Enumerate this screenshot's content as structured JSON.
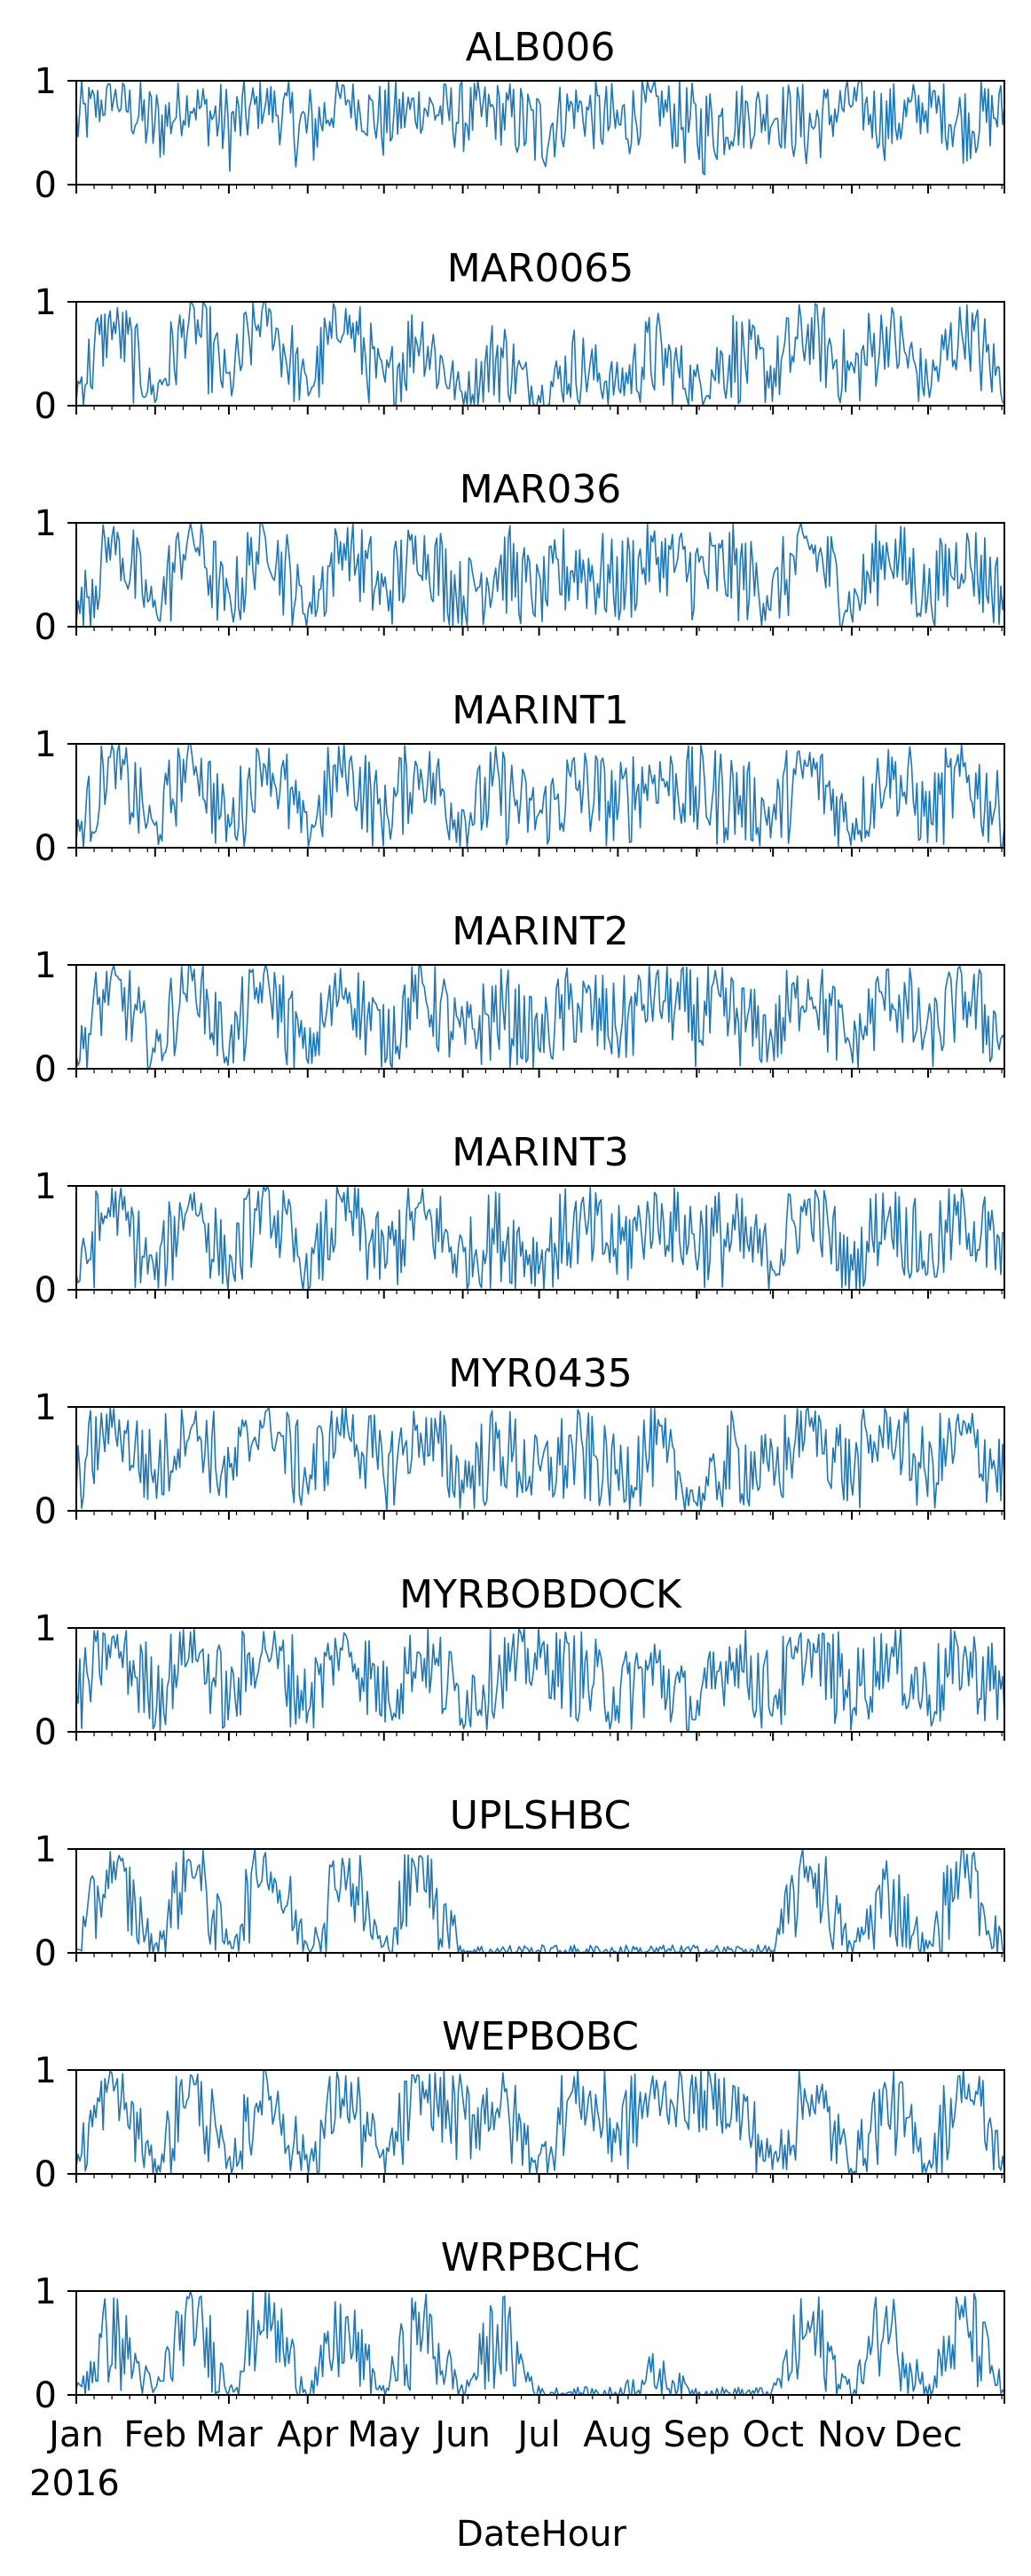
{
  "figure": {
    "xlabel": "DateHour",
    "year_label": "2016",
    "month_ticks": [
      "Jan",
      "Feb",
      "Mar",
      "Apr",
      "May",
      "Jun",
      "Jul",
      "Aug",
      "Sep",
      "Oct",
      "Nov",
      "Dec"
    ]
  },
  "colors": {
    "line": "#1f77b4",
    "axis": "#000000"
  },
  "chart_data": [
    {
      "type": "line",
      "title": "ALB006",
      "xlabel": "DateHour",
      "ylim": [
        0,
        1
      ],
      "yticks": [
        0,
        1
      ],
      "x_range": [
        "2016-01-01",
        "2016-12-31"
      ],
      "x": [
        "2016-01-01",
        "2016-01-15",
        "2016-02-01",
        "2016-02-15",
        "2016-03-01",
        "2016-03-15",
        "2016-04-01",
        "2016-04-15",
        "2016-05-01",
        "2016-05-15",
        "2016-06-01",
        "2016-06-15",
        "2016-07-01",
        "2016-07-15",
        "2016-08-01",
        "2016-08-15",
        "2016-09-01",
        "2016-09-15",
        "2016-10-01",
        "2016-10-15",
        "2016-11-01",
        "2016-11-15",
        "2016-12-01",
        "2016-12-15",
        "2016-12-31"
      ],
      "values": [
        0.6,
        0.85,
        0.55,
        0.8,
        0.55,
        0.8,
        0.5,
        0.85,
        0.6,
        0.75,
        0.65,
        0.7,
        0.5,
        0.75,
        0.55,
        0.8,
        0.5,
        0.65,
        0.7,
        0.55,
        0.8,
        0.6,
        0.75,
        0.6,
        0.7
      ]
    },
    {
      "type": "line",
      "title": "MAR0065",
      "xlabel": "DateHour",
      "ylim": [
        0,
        1
      ],
      "yticks": [
        0,
        1
      ],
      "x_range": [
        "2016-01-01",
        "2016-12-31"
      ],
      "x": [
        "2016-01-01",
        "2016-01-15",
        "2016-02-01",
        "2016-02-15",
        "2016-03-01",
        "2016-03-15",
        "2016-04-01",
        "2016-04-15",
        "2016-05-01",
        "2016-05-15",
        "2016-06-01",
        "2016-06-15",
        "2016-07-01",
        "2016-07-15",
        "2016-08-01",
        "2016-08-15",
        "2016-09-01",
        "2016-09-15",
        "2016-10-01",
        "2016-10-15",
        "2016-11-01",
        "2016-11-15",
        "2016-12-01",
        "2016-12-15",
        "2016-12-31"
      ],
      "values": [
        0.15,
        0.8,
        0.1,
        0.85,
        0.2,
        0.9,
        0.15,
        0.85,
        0.2,
        0.7,
        0.1,
        0.5,
        0.1,
        0.4,
        0.2,
        0.5,
        0.2,
        0.5,
        0.3,
        0.7,
        0.3,
        0.7,
        0.2,
        0.75,
        0.2
      ]
    },
    {
      "type": "line",
      "title": "MAR036",
      "xlabel": "DateHour",
      "ylim": [
        0,
        1
      ],
      "yticks": [
        0,
        1
      ],
      "x_range": [
        "2016-01-01",
        "2016-12-31"
      ],
      "x": [
        "2016-01-01",
        "2016-01-15",
        "2016-02-01",
        "2016-02-15",
        "2016-03-01",
        "2016-03-15",
        "2016-04-01",
        "2016-04-15",
        "2016-05-01",
        "2016-05-15",
        "2016-06-01",
        "2016-06-15",
        "2016-07-01",
        "2016-07-15",
        "2016-08-01",
        "2016-08-15",
        "2016-09-01",
        "2016-09-15",
        "2016-10-01",
        "2016-10-15",
        "2016-11-01",
        "2016-11-15",
        "2016-12-01",
        "2016-12-15",
        "2016-12-31"
      ],
      "values": [
        0.1,
        0.85,
        0.15,
        0.9,
        0.2,
        0.85,
        0.15,
        0.8,
        0.3,
        0.75,
        0.3,
        0.6,
        0.3,
        0.6,
        0.4,
        0.7,
        0.5,
        0.55,
        0.3,
        0.8,
        0.2,
        0.75,
        0.3,
        0.7,
        0.3
      ]
    },
    {
      "type": "line",
      "title": "MARINT1",
      "xlabel": "DateHour",
      "ylim": [
        0,
        1
      ],
      "yticks": [
        0,
        1
      ],
      "x_range": [
        "2016-01-01",
        "2016-12-31"
      ],
      "x": [
        "2016-01-01",
        "2016-01-15",
        "2016-02-01",
        "2016-02-15",
        "2016-03-01",
        "2016-03-15",
        "2016-04-01",
        "2016-04-15",
        "2016-05-01",
        "2016-05-15",
        "2016-06-01",
        "2016-06-15",
        "2016-07-01",
        "2016-07-15",
        "2016-08-01",
        "2016-08-15",
        "2016-09-01",
        "2016-09-15",
        "2016-10-01",
        "2016-10-15",
        "2016-11-01",
        "2016-11-15",
        "2016-12-01",
        "2016-12-15",
        "2016-12-31"
      ],
      "values": [
        0.1,
        0.85,
        0.15,
        0.9,
        0.2,
        0.85,
        0.15,
        0.8,
        0.3,
        0.75,
        0.3,
        0.55,
        0.3,
        0.6,
        0.4,
        0.7,
        0.5,
        0.5,
        0.3,
        0.8,
        0.2,
        0.75,
        0.3,
        0.7,
        0.3
      ]
    },
    {
      "type": "line",
      "title": "MARINT2",
      "xlabel": "DateHour",
      "ylim": [
        0,
        1
      ],
      "yticks": [
        0,
        1
      ],
      "x_range": [
        "2016-01-01",
        "2016-12-31"
      ],
      "x": [
        "2016-01-01",
        "2016-01-15",
        "2016-02-01",
        "2016-02-15",
        "2016-03-01",
        "2016-03-15",
        "2016-04-01",
        "2016-04-15",
        "2016-05-01",
        "2016-05-15",
        "2016-06-01",
        "2016-06-15",
        "2016-07-01",
        "2016-07-15",
        "2016-08-01",
        "2016-08-15",
        "2016-09-01",
        "2016-09-15",
        "2016-10-01",
        "2016-10-15",
        "2016-11-01",
        "2016-11-15",
        "2016-12-01",
        "2016-12-15",
        "2016-12-31"
      ],
      "values": [
        0.1,
        0.85,
        0.15,
        0.9,
        0.2,
        0.85,
        0.15,
        0.8,
        0.3,
        0.75,
        0.3,
        0.55,
        0.3,
        0.6,
        0.4,
        0.7,
        0.5,
        0.5,
        0.3,
        0.8,
        0.2,
        0.75,
        0.3,
        0.7,
        0.3
      ]
    },
    {
      "type": "line",
      "title": "MARINT3",
      "xlabel": "DateHour",
      "ylim": [
        0,
        1
      ],
      "yticks": [
        0,
        1
      ],
      "x_range": [
        "2016-01-01",
        "2016-12-31"
      ],
      "x": [
        "2016-01-01",
        "2016-01-15",
        "2016-02-01",
        "2016-02-15",
        "2016-03-01",
        "2016-03-15",
        "2016-04-01",
        "2016-04-15",
        "2016-05-01",
        "2016-05-15",
        "2016-06-01",
        "2016-06-15",
        "2016-07-01",
        "2016-07-15",
        "2016-08-01",
        "2016-08-15",
        "2016-09-01",
        "2016-09-15",
        "2016-10-01",
        "2016-10-15",
        "2016-11-01",
        "2016-11-15",
        "2016-12-01",
        "2016-12-15",
        "2016-12-31"
      ],
      "values": [
        0.1,
        0.85,
        0.15,
        0.9,
        0.2,
        0.85,
        0.15,
        0.8,
        0.3,
        0.75,
        0.3,
        0.55,
        0.3,
        0.6,
        0.4,
        0.7,
        0.5,
        0.5,
        0.3,
        0.8,
        0.2,
        0.75,
        0.3,
        0.7,
        0.3
      ]
    },
    {
      "type": "line",
      "title": "MYR0435",
      "xlabel": "DateHour",
      "ylim": [
        0,
        1
      ],
      "yticks": [
        0,
        1
      ],
      "x_range": [
        "2016-01-01",
        "2016-12-31"
      ],
      "x": [
        "2016-01-01",
        "2016-01-15",
        "2016-02-01",
        "2016-02-15",
        "2016-03-01",
        "2016-03-15",
        "2016-04-01",
        "2016-04-15",
        "2016-05-01",
        "2016-05-15",
        "2016-06-01",
        "2016-06-15",
        "2016-07-01",
        "2016-07-15",
        "2016-08-01",
        "2016-08-15",
        "2016-09-01",
        "2016-09-15",
        "2016-10-01",
        "2016-10-15",
        "2016-11-01",
        "2016-11-15",
        "2016-12-01",
        "2016-12-15",
        "2016-12-31"
      ],
      "values": [
        0.3,
        0.85,
        0.35,
        0.85,
        0.3,
        0.9,
        0.3,
        0.85,
        0.35,
        0.75,
        0.3,
        0.6,
        0.35,
        0.55,
        0.35,
        0.6,
        0.1,
        0.5,
        0.35,
        0.85,
        0.35,
        0.8,
        0.35,
        0.75,
        0.35
      ]
    },
    {
      "type": "line",
      "title": "MYRBOBDOCK",
      "xlabel": "DateHour",
      "ylim": [
        0,
        1
      ],
      "yticks": [
        0,
        1
      ],
      "x_range": [
        "2016-01-01",
        "2016-12-31"
      ],
      "x": [
        "2016-01-01",
        "2016-01-15",
        "2016-02-01",
        "2016-02-15",
        "2016-03-01",
        "2016-03-15",
        "2016-04-01",
        "2016-04-15",
        "2016-05-01",
        "2016-05-15",
        "2016-06-01",
        "2016-06-15",
        "2016-07-01",
        "2016-07-15",
        "2016-08-01",
        "2016-08-15",
        "2016-09-01",
        "2016-09-15",
        "2016-10-01",
        "2016-10-15",
        "2016-11-01",
        "2016-11-15",
        "2016-12-01",
        "2016-12-15",
        "2016-12-31"
      ],
      "values": [
        0.3,
        0.85,
        0.35,
        0.85,
        0.3,
        0.85,
        0.3,
        0.85,
        0.35,
        0.75,
        0.3,
        0.6,
        0.7,
        0.55,
        0.35,
        0.6,
        0.2,
        0.75,
        0.35,
        0.8,
        0.35,
        0.75,
        0.35,
        0.7,
        0.35
      ]
    },
    {
      "type": "line",
      "title": "UPLSHBC",
      "xlabel": "DateHour",
      "ylim": [
        0,
        1
      ],
      "yticks": [
        0,
        1
      ],
      "x_range": [
        "2016-01-01",
        "2016-12-31"
      ],
      "x": [
        "2016-01-01",
        "2016-01-15",
        "2016-02-01",
        "2016-02-15",
        "2016-03-01",
        "2016-03-15",
        "2016-04-01",
        "2016-04-15",
        "2016-05-01",
        "2016-05-15",
        "2016-06-01",
        "2016-06-15",
        "2016-07-01",
        "2016-07-15",
        "2016-08-01",
        "2016-08-15",
        "2016-09-01",
        "2016-09-15",
        "2016-10-01",
        "2016-10-15",
        "2016-11-01",
        "2016-11-15",
        "2016-12-01",
        "2016-12-15",
        "2016-12-31"
      ],
      "values": [
        0.02,
        0.85,
        0.02,
        0.9,
        0.05,
        0.9,
        0.05,
        0.85,
        0.02,
        0.85,
        0.02,
        0.02,
        0.02,
        0.02,
        0.02,
        0.02,
        0.02,
        0.02,
        0.02,
        0.85,
        0.02,
        0.6,
        0.02,
        0.9,
        0.02
      ]
    },
    {
      "type": "line",
      "title": "WEPBOBC",
      "xlabel": "DateHour",
      "ylim": [
        0,
        1
      ],
      "yticks": [
        0,
        1
      ],
      "x_range": [
        "2016-01-01",
        "2016-12-31"
      ],
      "x": [
        "2016-01-01",
        "2016-01-15",
        "2016-02-01",
        "2016-02-15",
        "2016-03-01",
        "2016-03-15",
        "2016-04-01",
        "2016-04-15",
        "2016-05-01",
        "2016-05-15",
        "2016-06-01",
        "2016-06-15",
        "2016-07-01",
        "2016-07-15",
        "2016-08-01",
        "2016-08-15",
        "2016-09-01",
        "2016-09-15",
        "2016-10-01",
        "2016-10-15",
        "2016-11-01",
        "2016-11-15",
        "2016-12-01",
        "2016-12-15",
        "2016-12-31"
      ],
      "values": [
        0.1,
        0.9,
        0.05,
        0.9,
        0.05,
        0.85,
        0.1,
        0.8,
        0.1,
        0.8,
        0.5,
        0.7,
        0.1,
        0.8,
        0.4,
        0.75,
        0.7,
        0.7,
        0.1,
        0.8,
        0.1,
        0.7,
        0.1,
        0.9,
        0.1
      ]
    },
    {
      "type": "line",
      "title": "WRPBCHC",
      "xlabel": "DateHour",
      "ylim": [
        0,
        1
      ],
      "yticks": [
        0,
        1
      ],
      "x_range": [
        "2016-01-01",
        "2016-12-31"
      ],
      "x": [
        "2016-01-01",
        "2016-01-15",
        "2016-02-01",
        "2016-02-15",
        "2016-03-01",
        "2016-03-15",
        "2016-04-01",
        "2016-04-15",
        "2016-05-01",
        "2016-05-15",
        "2016-06-01",
        "2016-06-15",
        "2016-07-01",
        "2016-07-15",
        "2016-08-01",
        "2016-08-15",
        "2016-09-01",
        "2016-09-15",
        "2016-10-01",
        "2016-10-15",
        "2016-11-01",
        "2016-11-15",
        "2016-12-01",
        "2016-12-15",
        "2016-12-31"
      ],
      "values": [
        0.02,
        0.6,
        0.02,
        0.8,
        0.05,
        0.8,
        0.02,
        0.6,
        0.02,
        0.7,
        0.02,
        0.6,
        0.02,
        0.02,
        0.02,
        0.2,
        0.02,
        0.02,
        0.02,
        0.65,
        0.02,
        0.75,
        0.02,
        0.75,
        0.02
      ]
    }
  ]
}
